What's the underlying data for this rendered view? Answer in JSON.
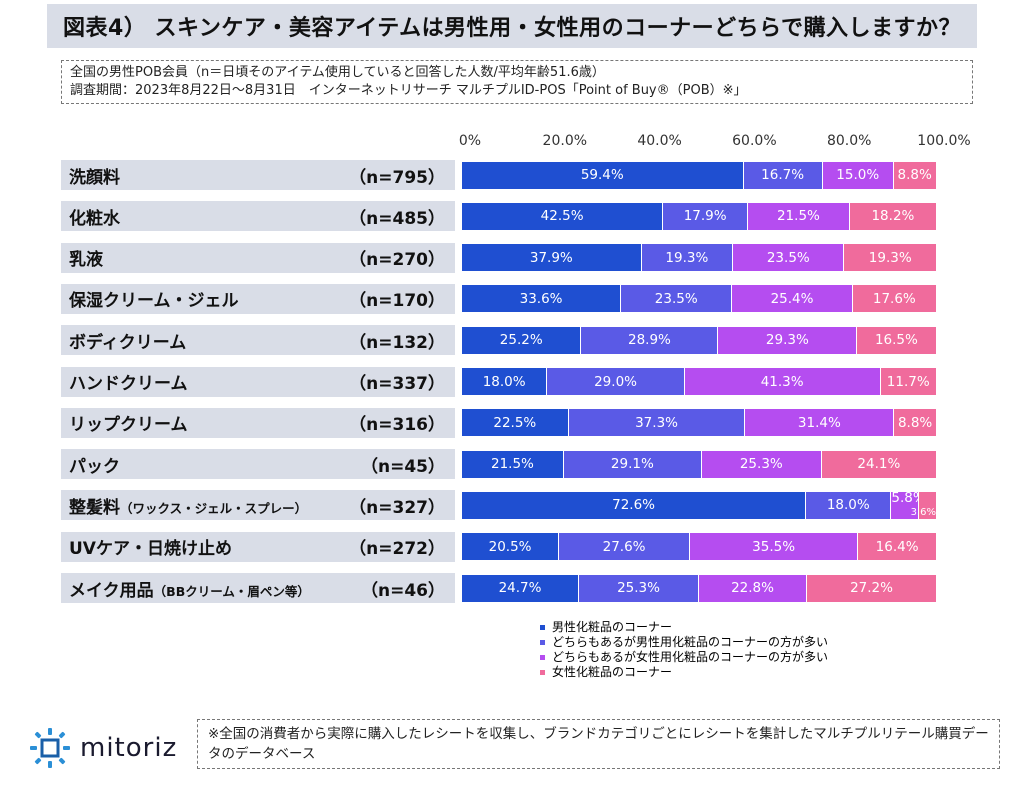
{
  "title": "図表4） スキンケア・美容アイテムは男性用・女性用のコーナーどちらで購入しますか？",
  "notes": {
    "line1": "全国の男性POB会員（n＝日頃そのアイテム使用していると回答した人数/平均年齢51.6歳）",
    "line2": "調査期間：2023年8月22日～8月31日　インターネットリサーチ マルチプルID-POS「Point of Buy®（POB）※」"
  },
  "footnote": "※全国の消費者から実際に購入したレシートを収集し、ブランドカテゴリごとにレシートを集計したマルチプルリテール購買データのデータベース",
  "logo": {
    "text": "mitoriz",
    "icon": "mitoriz-logo-icon"
  },
  "colors": {
    "series": [
      "#1f4fd1",
      "#5a5ae6",
      "#b54df0",
      "#f06b9c"
    ],
    "label_bg": "#d9dde7"
  },
  "chart_data": {
    "type": "bar",
    "orientation": "horizontal",
    "stacked": true,
    "xlim": [
      0,
      100
    ],
    "x_ticks": [
      "0%",
      "20.0%",
      "40.0%",
      "60.0%",
      "80.0%",
      "100.0%"
    ],
    "categories": [
      {
        "label": "洗顔料",
        "sub": "",
        "n": "（n=795）"
      },
      {
        "label": "化粧水",
        "sub": "",
        "n": "（n=485）"
      },
      {
        "label": "乳液",
        "sub": "",
        "n": "（n=270）"
      },
      {
        "label": "保湿クリーム・ジェル",
        "sub": "",
        "n": "（n=170）"
      },
      {
        "label": "ボディクリーム",
        "sub": "",
        "n": "（n=132）"
      },
      {
        "label": "ハンドクリーム",
        "sub": "",
        "n": "（n=337）"
      },
      {
        "label": "リップクリーム",
        "sub": "",
        "n": "（n=316）"
      },
      {
        "label": "パック",
        "sub": "",
        "n": "（n=45）"
      },
      {
        "label": "整髪料",
        "sub": "（ワックス・ジェル・スプレー）",
        "n": "（n=327）"
      },
      {
        "label": "UVケア・日焼け止め",
        "sub": "",
        "n": "（n=272）"
      },
      {
        "label": "メイク用品",
        "sub": "（BBクリーム・眉ペン等）",
        "n": "（n=46）"
      }
    ],
    "series": [
      {
        "name": "男性化粧品のコーナー",
        "values": [
          59.4,
          42.5,
          37.9,
          33.6,
          25.2,
          18.0,
          22.5,
          21.5,
          72.6,
          20.5,
          24.7
        ]
      },
      {
        "name": "どちらもあるが男性用化粧品のコーナーの方が多い",
        "values": [
          16.7,
          17.9,
          19.3,
          23.5,
          28.9,
          29.0,
          37.3,
          29.1,
          18.0,
          27.6,
          25.3
        ]
      },
      {
        "name": "どちらもあるが女性用化粧品のコーナーの方が多い",
        "values": [
          15.0,
          21.5,
          23.5,
          25.4,
          29.3,
          41.3,
          31.4,
          25.3,
          5.8,
          35.5,
          22.8
        ]
      },
      {
        "name": "女性化粧品のコーナー",
        "values": [
          8.8,
          18.2,
          19.3,
          17.6,
          16.5,
          11.7,
          8.8,
          24.1,
          3.6,
          16.4,
          27.2
        ]
      }
    ],
    "value_labels": [
      [
        "59.4%",
        "16.7%",
        "15.0%",
        "8.8%"
      ],
      [
        "42.5%",
        "17.9%",
        "21.5%",
        "18.2%"
      ],
      [
        "37.9%",
        "19.3%",
        "23.5%",
        "19.3%"
      ],
      [
        "33.6%",
        "23.5%",
        "25.4%",
        "17.6%"
      ],
      [
        "25.2%",
        "28.9%",
        "29.3%",
        "16.5%"
      ],
      [
        "18.0%",
        "29.0%",
        "41.3%",
        "11.7%"
      ],
      [
        "22.5%",
        "37.3%",
        "31.4%",
        "8.8%"
      ],
      [
        "21.5%",
        "29.1%",
        "25.3%",
        "24.1%"
      ],
      [
        "72.6%",
        "18.0%",
        "5.8%",
        "3.6%"
      ],
      [
        "20.5%",
        "27.6%",
        "35.5%",
        "16.4%"
      ],
      [
        "24.7%",
        "25.3%",
        "22.8%",
        "27.2%"
      ]
    ],
    "legend_position": "bottom"
  }
}
